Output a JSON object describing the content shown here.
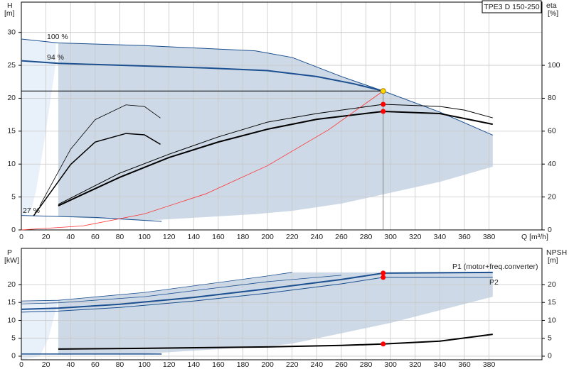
{
  "chart_data": [
    {
      "type": "line",
      "title": "TPE3 D 150-250",
      "x_label": "Q [m³/h]",
      "y_label": "H",
      "y_unit": "[m]",
      "y2_label": "eta",
      "y2_unit": "[%]",
      "xlim": [
        0,
        423
      ],
      "xticks": [
        0,
        20,
        40,
        60,
        80,
        100,
        120,
        140,
        160,
        180,
        200,
        220,
        240,
        260,
        280,
        300,
        320,
        340,
        360,
        380
      ],
      "ylim": [
        0,
        34.6
      ],
      "yticks": [
        0,
        5,
        10,
        15,
        20,
        25,
        30
      ],
      "y2lim": [
        0,
        138.4
      ],
      "y2ticks": [
        0,
        20,
        40,
        60,
        80,
        100
      ],
      "grid": true,
      "areas": [
        {
          "color": "#cdd9e6",
          "x": [
            30,
            100,
            190,
            220,
            260,
            294,
            340,
            383
          ],
          "upper": [
            28.4,
            28.0,
            27.2,
            26.2,
            23.3,
            21.1,
            17.9,
            14.4
          ],
          "lower": [
            2.0,
            1.4,
            2.4,
            2.9,
            4.0,
            5.4,
            7.3,
            9.6
          ]
        },
        {
          "color": "#e8f0fa",
          "x": [
            0,
            8,
            12,
            20,
            28
          ],
          "upper": [
            29.0,
            28.8,
            28.7,
            28.5,
            28.4
          ],
          "lower": [
            2,
            3,
            6,
            15,
            25.3
          ]
        }
      ],
      "series": [
        {
          "name": "100 %",
          "color": "#1b4f8f",
          "linewidth": 1,
          "x": [
            0,
            30,
            100,
            190,
            220,
            260,
            294,
            340,
            383
          ],
          "values": [
            29.0,
            28.4,
            28.0,
            27.2,
            26.2,
            23.3,
            21.1,
            17.9,
            14.4
          ]
        },
        {
          "name": "94 %",
          "color": "#1b4f8f",
          "linewidth": 2,
          "x": [
            0,
            30,
            100,
            150,
            200,
            240,
            270,
            294
          ],
          "values": [
            25.7,
            25.3,
            24.9,
            24.6,
            24.2,
            23.3,
            22.2,
            21.1
          ]
        },
        {
          "name": "27 %",
          "color": "#1b4f8f",
          "linewidth": 1,
          "x": [
            0,
            60,
            114
          ],
          "values": [
            2.2,
            1.9,
            1.3
          ]
        },
        {
          "color": "#000000",
          "linewidth": 1,
          "axis": "y2",
          "x": [
            30,
            80,
            120,
            160,
            200,
            240,
            294,
            340,
            360,
            383
          ],
          "values": [
            15.5,
            34.5,
            46,
            56.5,
            65.5,
            70.7,
            76.3,
            75,
            72.8,
            68.1
          ]
        },
        {
          "color": "#000000",
          "linewidth": 2,
          "axis": "y2",
          "x": [
            30,
            80,
            120,
            160,
            200,
            240,
            294,
            340,
            383
          ],
          "values": [
            14.7,
            32,
            44,
            53.4,
            61.2,
            67.2,
            72,
            70.7,
            64.2
          ]
        },
        {
          "color": "#000000",
          "linewidth": 0.8,
          "axis": "y2",
          "x": [
            15,
            40,
            60,
            85,
            100,
            113
          ],
          "values": [
            14.7,
            49,
            67,
            76,
            75,
            68
          ]
        },
        {
          "color": "#000000",
          "linewidth": 1.5,
          "axis": "y2",
          "x": [
            10,
            40,
            60,
            85,
            100,
            113
          ],
          "values": [
            8.6,
            39.7,
            53.4,
            58.6,
            57.8,
            52
          ]
        },
        {
          "color": "#ff3333",
          "linewidth": 0.8,
          "x": [
            0,
            50,
            100,
            150,
            200,
            250,
            294
          ],
          "values": [
            0,
            0.61,
            2.44,
            5.49,
            9.76,
            15.26,
            21.1
          ]
        },
        {
          "color": "#000000",
          "linewidth": 1,
          "x": [
            0,
            294
          ],
          "values": [
            21.1,
            21.1
          ]
        },
        {
          "color": "#888888",
          "linewidth": 1,
          "x": [
            294,
            294
          ],
          "values": [
            21.1,
            0
          ]
        }
      ],
      "points": [
        {
          "x": 294,
          "y": 21.1,
          "color": "#ffd700"
        },
        {
          "x": 294,
          "y": 76.3,
          "axis": "y2",
          "color": "#ff0000"
        },
        {
          "x": 294,
          "y": 72,
          "axis": "y2",
          "color": "#ff0000"
        }
      ]
    },
    {
      "type": "line",
      "y_label": "P",
      "y_unit": "[kW]",
      "y2_label": "NPSH",
      "y2_unit": "[m]",
      "xlim": [
        0,
        423
      ],
      "xticks": [
        0,
        20,
        40,
        60,
        80,
        100,
        120,
        140,
        160,
        180,
        200,
        220,
        240,
        260,
        280,
        300,
        320,
        340,
        360,
        380
      ],
      "ylim": [
        -1,
        30.1
      ],
      "yticks": [
        0,
        5,
        10,
        15,
        20
      ],
      "y2lim": [
        -1,
        30.1
      ],
      "y2ticks": [
        0,
        5,
        10,
        15,
        20
      ],
      "grid": true,
      "areas": [
        {
          "color": "#cdd9e6",
          "x": [
            30,
            100,
            200,
            220,
            300,
            383
          ],
          "upper": [
            15.6,
            17.8,
            22.4,
            23.4,
            23.4,
            23.4
          ],
          "lower": [
            0.4,
            0.7,
            2.8,
            3.5,
            9.3,
            16.6
          ]
        },
        {
          "color": "#e8f0fa",
          "x": [
            0,
            15,
            22,
            30
          ],
          "upper": [
            15.4,
            15.5,
            15.5,
            15.6
          ],
          "lower": [
            -1,
            0,
            5,
            15.6
          ]
        }
      ],
      "series": [
        {
          "name": "P1 (motor+freq.converter)",
          "color": "#1b4f8f",
          "linewidth": 2,
          "x": [
            0,
            30,
            80,
            140,
            200,
            260,
            294,
            383
          ],
          "values": [
            13.1,
            13.4,
            14.5,
            16.4,
            18.8,
            21.4,
            23.2,
            23.4
          ]
        },
        {
          "name": "P2",
          "color": "#1b4f8f",
          "linewidth": 1,
          "x": [
            0,
            30,
            80,
            140,
            200,
            260,
            294,
            383
          ],
          "values": [
            12.3,
            12.6,
            13.6,
            15.4,
            17.6,
            20.2,
            22.0,
            22.0
          ]
        },
        {
          "color": "#1b4f8f",
          "linewidth": 0.8,
          "x": [
            0,
            30,
            100,
            200,
            220
          ],
          "values": [
            15.4,
            15.6,
            17.8,
            22.4,
            23.4
          ]
        },
        {
          "color": "#1b4f8f",
          "linewidth": 0.8,
          "x": [
            0,
            30,
            100,
            200,
            260
          ],
          "values": [
            14.6,
            14.9,
            16.6,
            20.8,
            22.6
          ]
        },
        {
          "color": "#000000",
          "linewidth": 2,
          "axis": "y2",
          "x": [
            30,
            100,
            200,
            260,
            294,
            340,
            383
          ],
          "values": [
            2.0,
            2.2,
            2.6,
            3.0,
            3.4,
            4.2,
            6.1
          ]
        },
        {
          "color": "#1b4f8f",
          "linewidth": 1.5,
          "x": [
            0,
            114
          ],
          "values": [
            0.6,
            0.6
          ]
        }
      ],
      "points": [
        {
          "x": 294,
          "y": 23.2,
          "color": "#ff0000"
        },
        {
          "x": 294,
          "y": 22.0,
          "color": "#ff0000"
        },
        {
          "x": 294,
          "y": 3.4,
          "axis": "y2",
          "color": "#ff0000"
        }
      ]
    }
  ]
}
